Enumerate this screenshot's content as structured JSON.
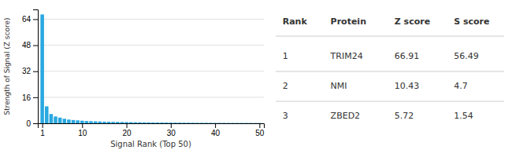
{
  "chart_data": {
    "type": "bar",
    "x": [
      1,
      2,
      3,
      4,
      5,
      6,
      7,
      8,
      9,
      10,
      11,
      12,
      13,
      14,
      15,
      16,
      17,
      18,
      19,
      20,
      21,
      22,
      23,
      24,
      25,
      26,
      27,
      28,
      29,
      30,
      31,
      32,
      33,
      34,
      35,
      36,
      37,
      38,
      39,
      40,
      41,
      42,
      43,
      44,
      45,
      46,
      47,
      48,
      49,
      50
    ],
    "values": [
      66.91,
      10.43,
      5.72,
      4.2,
      3.5,
      2.8,
      2.3,
      2.0,
      1.8,
      1.6,
      1.4,
      1.3,
      1.2,
      1.1,
      1.0,
      0.95,
      0.9,
      0.85,
      0.8,
      0.75,
      0.7,
      0.65,
      0.62,
      0.58,
      0.55,
      0.52,
      0.5,
      0.47,
      0.45,
      0.43,
      0.41,
      0.39,
      0.37,
      0.35,
      0.33,
      0.31,
      0.3,
      0.28,
      0.27,
      0.25,
      0.24,
      0.23,
      0.22,
      0.21,
      0.2,
      0.19,
      0.18,
      0.17,
      0.16,
      0.15
    ],
    "color": "#29a8e0",
    "xlabel": "Signal Rank (Top 50)",
    "ylabel": "Strength of Signal (Z score)",
    "xlim": [
      0,
      51
    ],
    "xticks": [
      1,
      10,
      20,
      30,
      40,
      50
    ],
    "ylim": [
      0,
      70
    ],
    "yticks": [
      0,
      16,
      32,
      48,
      64
    ],
    "grid": true,
    "table": {
      "columns": [
        "Rank",
        "Protein",
        "Z score",
        "S score"
      ],
      "rows": [
        [
          1,
          "TRIM24",
          66.91,
          56.49
        ],
        [
          2,
          "NMI",
          10.43,
          4.7
        ],
        [
          3,
          "ZBED2",
          5.72,
          1.54
        ]
      ]
    }
  }
}
